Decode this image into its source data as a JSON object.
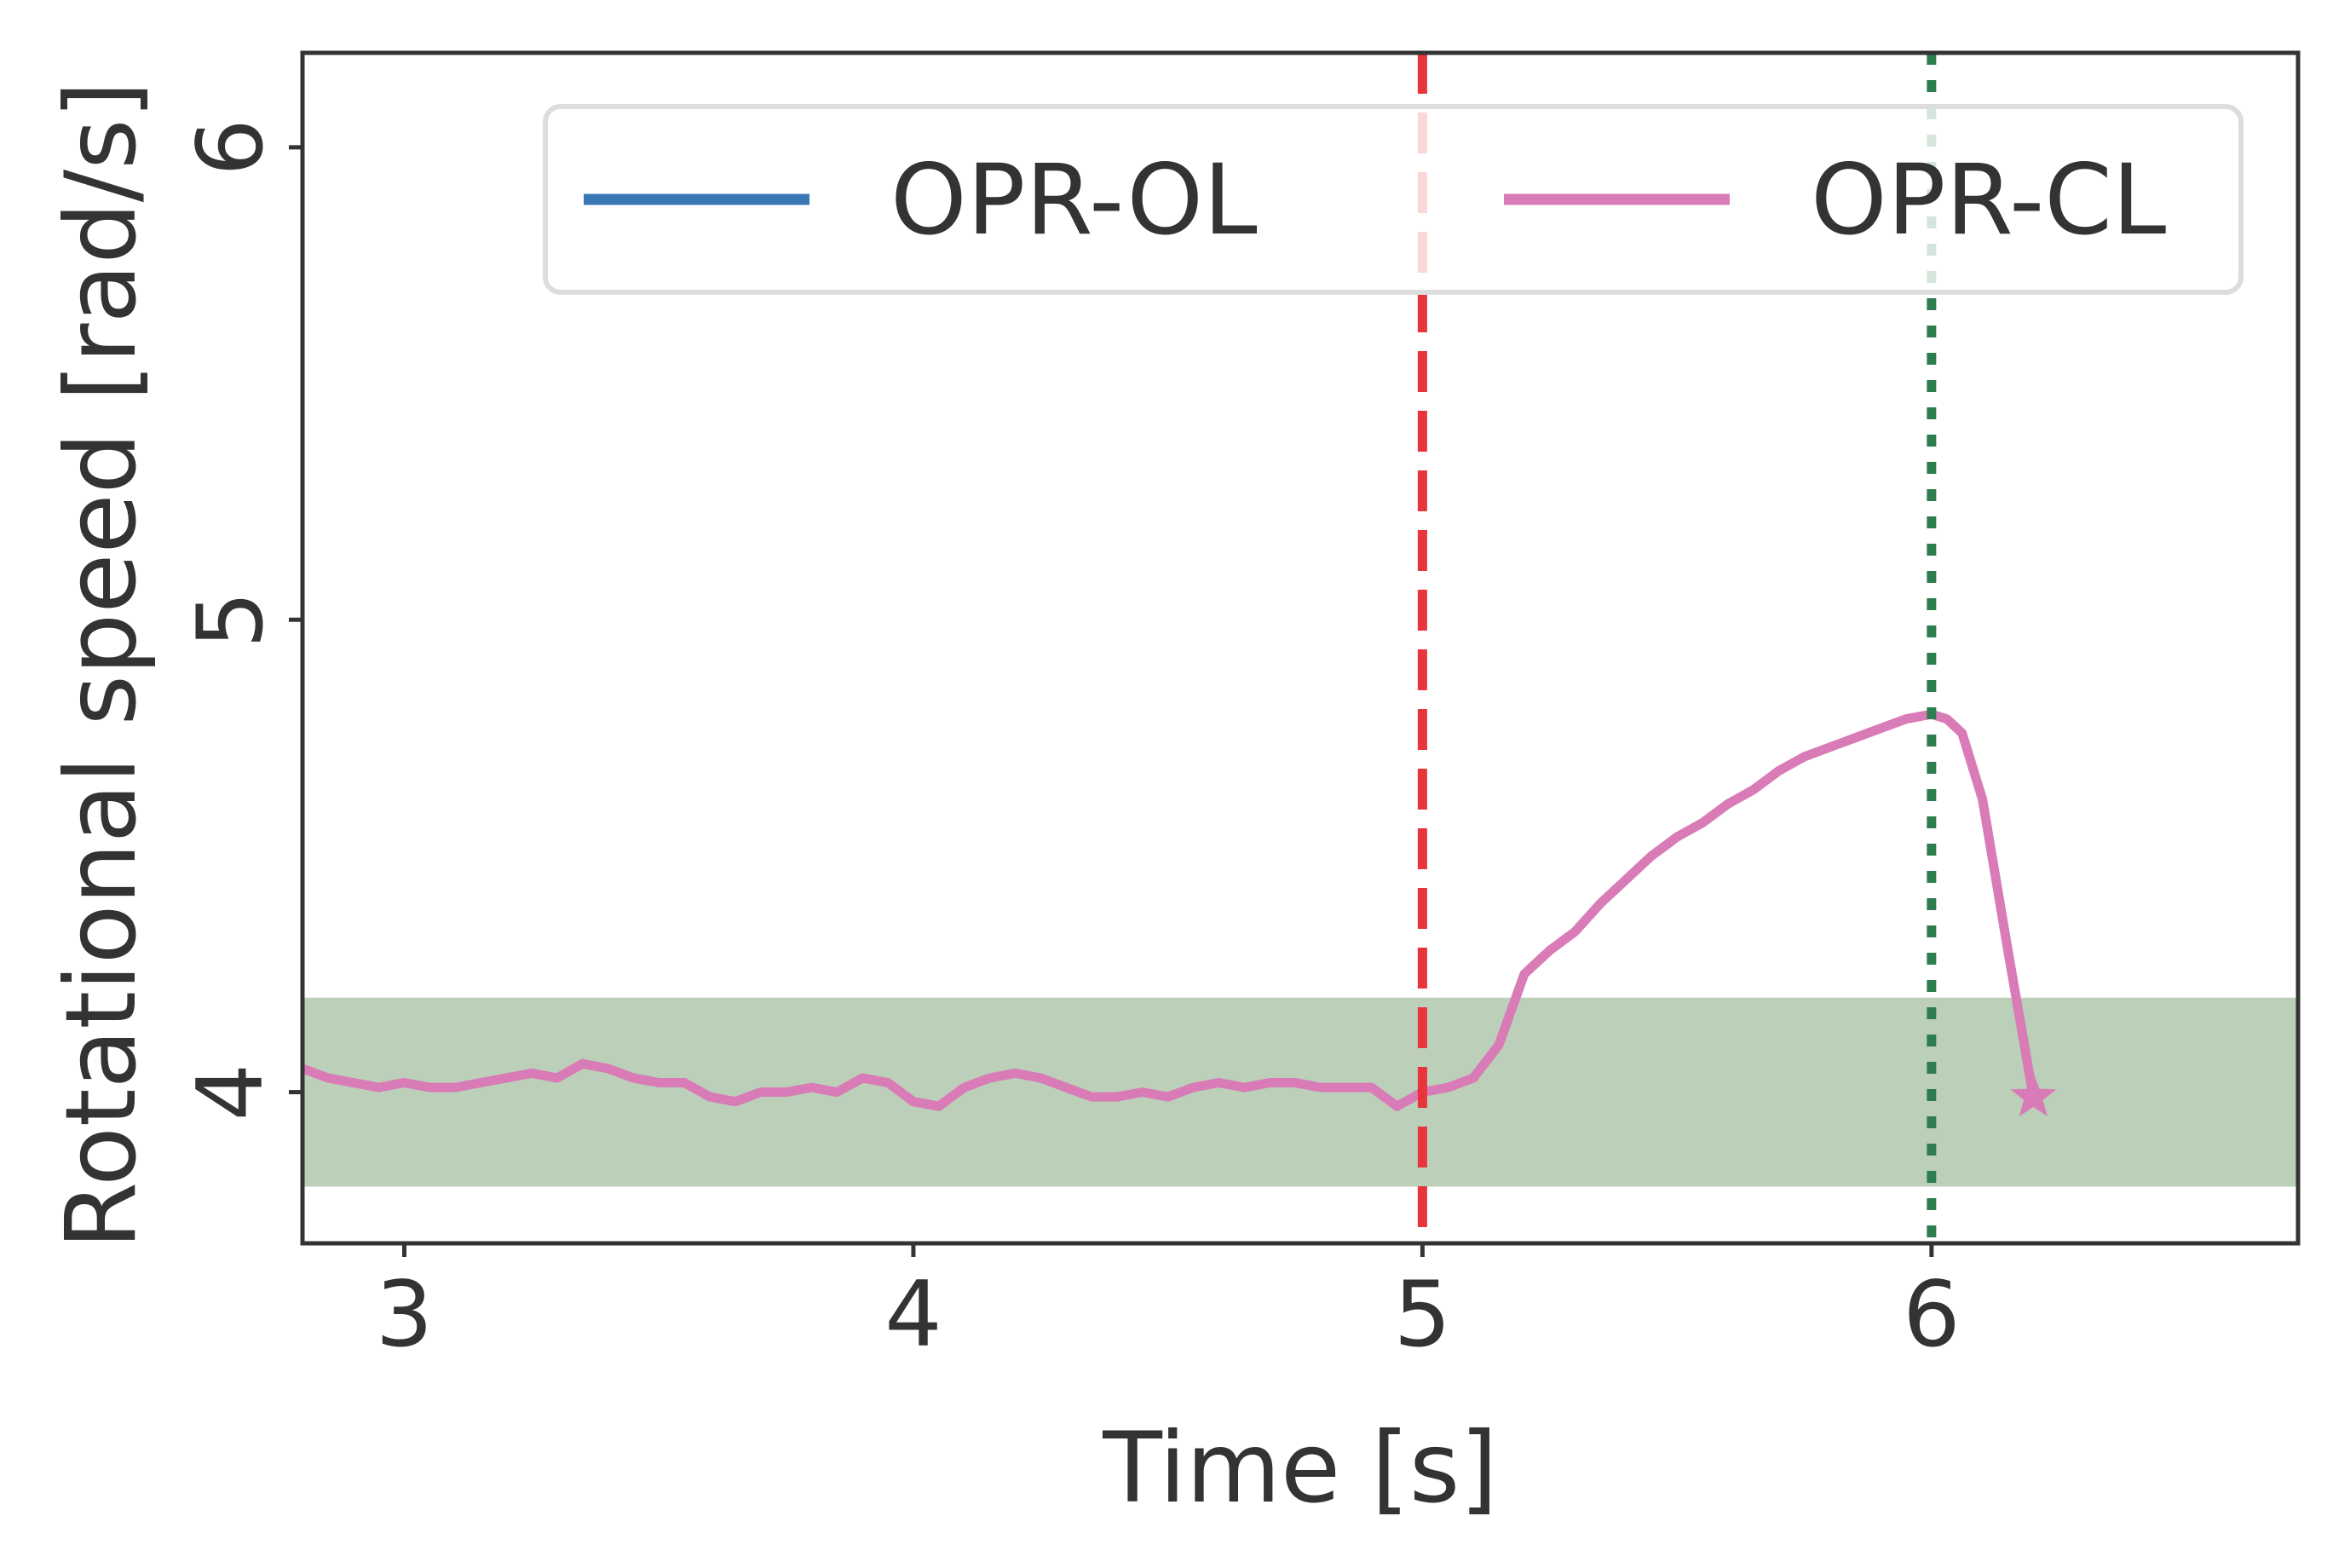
{
  "chart_data": {
    "type": "line",
    "title": "",
    "xlabel": "Time [s]",
    "ylabel": "Rotational speed [rad/s]",
    "xlim": [
      2.8,
      6.72
    ],
    "ylim": [
      3.68,
      6.2
    ],
    "xticks": [
      {
        "value": 3,
        "label": "3"
      },
      {
        "value": 4,
        "label": "4"
      },
      {
        "value": 5,
        "label": "5"
      },
      {
        "value": 6,
        "label": "6"
      }
    ],
    "yticks": [
      {
        "value": 4,
        "label": "4"
      },
      {
        "value": 5,
        "label": "5"
      },
      {
        "value": 6,
        "label": "6"
      }
    ],
    "grid": false,
    "legend": {
      "placement": "top-right",
      "columns": 2,
      "entries": [
        {
          "label": "OPR-OL",
          "color": "#3a78b5"
        },
        {
          "label": "OPR-CL",
          "color": "#d97bb6"
        }
      ]
    },
    "band": {
      "y0": 3.8,
      "y1": 4.2,
      "color": "#bccfb9"
    },
    "vlines": [
      {
        "x": 5.0,
        "color": "#e8343a",
        "style": "dashed"
      },
      {
        "x": 6.0,
        "color": "#2e7d4f",
        "style": "dotted"
      }
    ],
    "series": [
      {
        "name": "OPR-OL",
        "color": "#3a78b5",
        "x": [],
        "y": []
      },
      {
        "name": "OPR-CL",
        "color": "#d97bb6",
        "marker_end": "star",
        "x": [
          2.8,
          2.85,
          2.9,
          2.95,
          3.0,
          3.05,
          3.1,
          3.15,
          3.2,
          3.25,
          3.3,
          3.35,
          3.4,
          3.45,
          3.5,
          3.55,
          3.6,
          3.65,
          3.7,
          3.75,
          3.8,
          3.85,
          3.9,
          3.95,
          4.0,
          4.05,
          4.1,
          4.15,
          4.2,
          4.25,
          4.3,
          4.35,
          4.4,
          4.45,
          4.5,
          4.55,
          4.6,
          4.65,
          4.7,
          4.75,
          4.8,
          4.85,
          4.9,
          4.95,
          5.0,
          5.05,
          5.1,
          5.15,
          5.2,
          5.25,
          5.3,
          5.35,
          5.4,
          5.45,
          5.5,
          5.55,
          5.6,
          5.65,
          5.7,
          5.75,
          5.8,
          5.85,
          5.9,
          5.95,
          6.0,
          6.03,
          6.06,
          6.1,
          6.15,
          6.2
        ],
        "y": [
          4.05,
          4.03,
          4.02,
          4.01,
          4.02,
          4.01,
          4.01,
          4.02,
          4.03,
          4.04,
          4.03,
          4.06,
          4.05,
          4.03,
          4.02,
          4.02,
          3.99,
          3.98,
          4.0,
          4.0,
          4.01,
          4.0,
          4.03,
          4.02,
          3.98,
          3.97,
          4.01,
          4.03,
          4.04,
          4.03,
          4.01,
          3.99,
          3.99,
          4.0,
          3.99,
          4.01,
          4.02,
          4.01,
          4.02,
          4.02,
          4.01,
          4.01,
          4.01,
          3.97,
          4.0,
          4.01,
          4.03,
          4.1,
          4.25,
          4.3,
          4.34,
          4.4,
          4.45,
          4.5,
          4.54,
          4.57,
          4.61,
          4.64,
          4.68,
          4.71,
          4.73,
          4.75,
          4.77,
          4.79,
          4.8,
          4.79,
          4.76,
          4.62,
          4.3,
          3.99
        ]
      }
    ]
  }
}
